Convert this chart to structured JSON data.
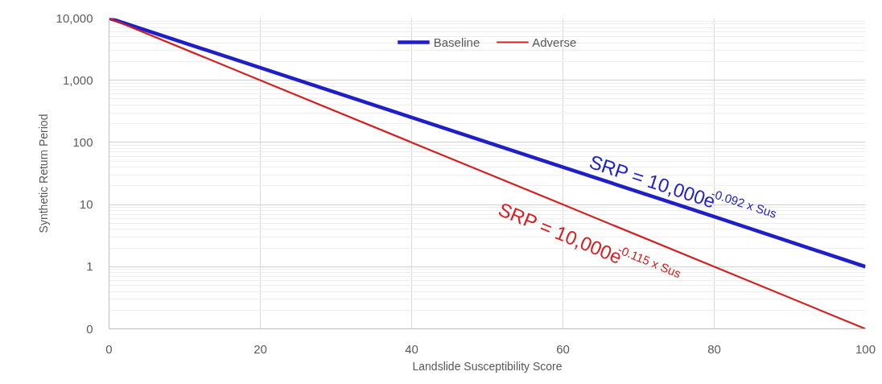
{
  "chart_data": {
    "type": "line",
    "xlabel": "Landslide Susceptibility Score",
    "ylabel": "Synthetic Return Period",
    "x": [
      0,
      20,
      40,
      60,
      80,
      100
    ],
    "series": [
      {
        "name": "Baseline",
        "color": "#1f1fc8",
        "values": [
          10000,
          1590,
          252,
          40,
          6.4,
          1.0
        ]
      },
      {
        "name": "Adverse",
        "color": "#d42020",
        "values": [
          10000,
          1000,
          100,
          10,
          1,
          0.1
        ]
      }
    ],
    "annotations": [
      "SRP = 10,000e$^{-0.092 x Sus}$",
      "SRP = 10,000e$^{-0.115 x Sus}$"
    ],
    "xlim": [
      0,
      100
    ],
    "xticks": [
      0,
      20,
      40,
      60,
      80,
      100
    ],
    "ylim": [
      0.1,
      10000
    ],
    "yticks": [
      {
        "value": 0.1,
        "label": "0"
      },
      1,
      10,
      100,
      {
        "value": 1000,
        "label": "1,000"
      },
      {
        "value": 10000,
        "label": "10,000"
      }
    ],
    "log": "y",
    "grid": true,
    "legend": "top",
    "marker": "none",
    "line_style": "solid"
  }
}
